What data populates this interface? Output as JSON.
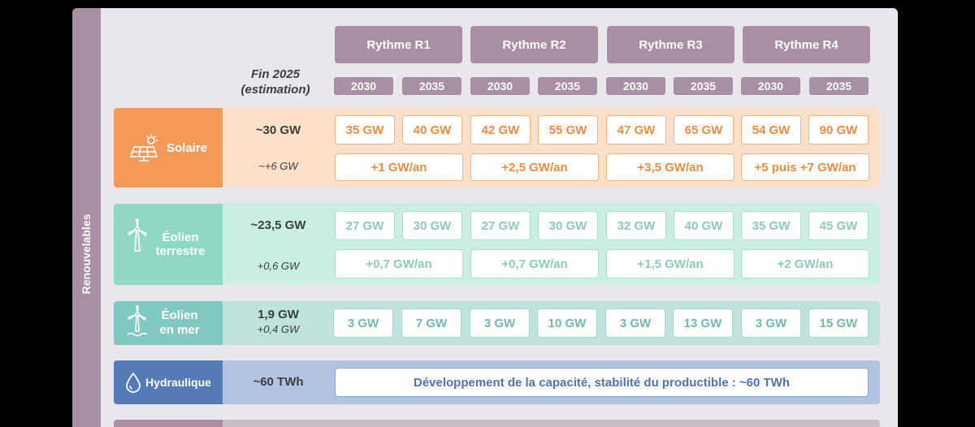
{
  "side_label": "Renouvelables",
  "header": {
    "rythmes": [
      "Rythme R1",
      "Rythme R2",
      "Rythme R3",
      "Rythme R4"
    ],
    "years": [
      "2030",
      "2035",
      "2030",
      "2035",
      "2030",
      "2035",
      "2030",
      "2035"
    ],
    "fin_line1": "Fin 2025",
    "fin_line2": "(estimation)"
  },
  "rows": {
    "solaire": {
      "label": "Solaire",
      "base": "~30 GW",
      "base_rate": "~+6 GW",
      "capacities": [
        "35 GW",
        "40 GW",
        "42 GW",
        "55 GW",
        "47 GW",
        "65 GW",
        "54 GW",
        "90 GW"
      ],
      "rates": [
        "+1 GW/an",
        "+2,5 GW/an",
        "+3,5 GW/an",
        "+5 puis +7 GW/an"
      ]
    },
    "eolien_terrestre": {
      "label_line1": "Éolien",
      "label_line2": "terrestre",
      "base": "~23,5 GW",
      "base_rate": "+0,6 GW",
      "capacities": [
        "27 GW",
        "30 GW",
        "27 GW",
        "30 GW",
        "32 GW",
        "40 GW",
        "35 GW",
        "45 GW"
      ],
      "rates": [
        "+0,7 GW/an",
        "+0,7 GW/an",
        "+1,5 GW/an",
        "+2 GW/an"
      ]
    },
    "eolien_mer": {
      "label_line1": "Éolien",
      "label_line2": "en mer",
      "base": "1,9 GW",
      "base_rate": "+0,4 GW",
      "capacities": [
        "3 GW",
        "7 GW",
        "3 GW",
        "10 GW",
        "3 GW",
        "13 GW",
        "3 GW",
        "15 GW"
      ]
    },
    "hydraulique": {
      "label": "Hydraulique",
      "base": "~60 TWh",
      "note": "Développement de la capacité, stabilité du productible : ~60 TWh"
    }
  },
  "colors": {
    "header": "#a88fa3",
    "solaire": "#f39a59",
    "eolien_terrestre": "#8ed8c5",
    "eolien_mer": "#7fc9c1",
    "hydraulique": "#557ab8"
  },
  "icons": [
    "solar-panel-icon",
    "wind-turbine-icon",
    "offshore-wind-turbine-icon",
    "water-drop-icon"
  ]
}
